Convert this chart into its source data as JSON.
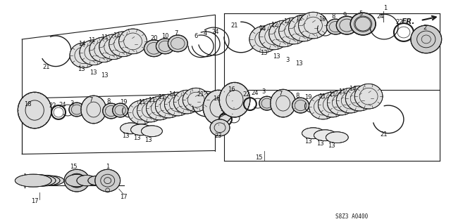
{
  "bg_color": "#ffffff",
  "line_color": "#1a1a1a",
  "part_number_text": "S8Z3 A0400",
  "fr_label": "FR.",
  "fig_width": 6.4,
  "fig_height": 3.19,
  "dpi": 100
}
